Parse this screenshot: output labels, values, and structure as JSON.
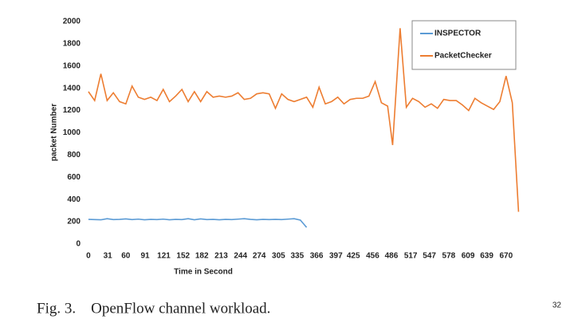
{
  "chart_data": {
    "type": "line",
    "x_label": "Time in Second",
    "y_label": "packet Number",
    "xlim": [
      -5,
      692
    ],
    "xticks": [
      0,
      31,
      60,
      91,
      121,
      152,
      182,
      213,
      244,
      274,
      305,
      335,
      366,
      397,
      425,
      456,
      486,
      517,
      547,
      578,
      609,
      639,
      670
    ],
    "ylim": [
      0,
      2000
    ],
    "yticks": [
      0,
      200,
      400,
      600,
      800,
      1000,
      1200,
      1400,
      1600,
      1800,
      2000
    ],
    "grid": false,
    "legend": "top-right",
    "series": [
      {
        "name": "INSPECTOR",
        "color": "#5b9bd5",
        "x": [
          0,
          10,
          20,
          30,
          40,
          50,
          60,
          70,
          80,
          90,
          100,
          110,
          120,
          130,
          140,
          150,
          160,
          170,
          180,
          190,
          200,
          210,
          220,
          230,
          240,
          250,
          260,
          270,
          280,
          290,
          300,
          310,
          320,
          330,
          340,
          350
        ],
        "values": [
          222,
          220,
          218,
          228,
          220,
          222,
          226,
          220,
          224,
          218,
          222,
          220,
          224,
          218,
          222,
          220,
          228,
          218,
          226,
          220,
          222,
          218,
          222,
          220,
          224,
          228,
          222,
          218,
          222,
          220,
          222,
          220,
          224,
          228,
          215,
          150
        ]
      },
      {
        "name": "PacketChecker",
        "color": "#ed7d31",
        "x": [
          0,
          10,
          20,
          30,
          40,
          50,
          60,
          70,
          80,
          90,
          100,
          110,
          120,
          130,
          140,
          150,
          160,
          170,
          180,
          190,
          200,
          210,
          220,
          230,
          240,
          250,
          260,
          270,
          280,
          290,
          300,
          310,
          320,
          330,
          340,
          350,
          360,
          370,
          380,
          390,
          400,
          410,
          420,
          430,
          440,
          450,
          460,
          470,
          480,
          488,
          500,
          510,
          520,
          530,
          540,
          550,
          560,
          570,
          580,
          590,
          600,
          610,
          620,
          630,
          640,
          650,
          660,
          670,
          680,
          690
        ],
        "values": [
          1370,
          1290,
          1530,
          1290,
          1360,
          1280,
          1260,
          1420,
          1320,
          1300,
          1320,
          1290,
          1390,
          1280,
          1330,
          1390,
          1280,
          1370,
          1280,
          1370,
          1320,
          1330,
          1320,
          1330,
          1360,
          1300,
          1310,
          1350,
          1360,
          1350,
          1220,
          1350,
          1300,
          1280,
          1300,
          1320,
          1230,
          1410,
          1260,
          1280,
          1320,
          1260,
          1300,
          1310,
          1310,
          1330,
          1460,
          1270,
          1240,
          890,
          1940,
          1230,
          1310,
          1280,
          1230,
          1260,
          1220,
          1300,
          1290,
          1290,
          1250,
          1200,
          1310,
          1270,
          1240,
          1210,
          1280,
          1510,
          1270,
          290
        ]
      }
    ]
  },
  "caption": "Fig. 3.    OpenFlow channel workload.",
  "page_number": "32"
}
